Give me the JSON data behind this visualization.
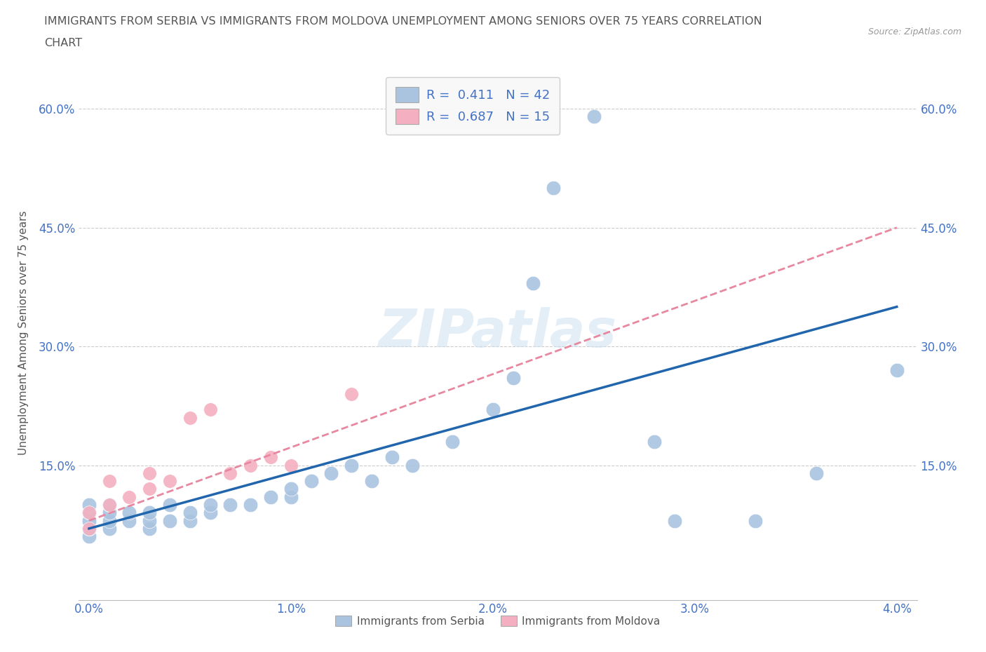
{
  "title_line1": "IMMIGRANTS FROM SERBIA VS IMMIGRANTS FROM MOLDOVA UNEMPLOYMENT AMONG SENIORS OVER 75 YEARS CORRELATION",
  "title_line2": "CHART",
  "source": "Source: ZipAtlas.com",
  "ylabel": "Unemployment Among Seniors over 75 years",
  "watermark": "ZIPatlas",
  "serbia_R": 0.411,
  "serbia_N": 42,
  "moldova_R": 0.687,
  "moldova_N": 15,
  "serbia_color": "#aac4e0",
  "moldova_color": "#f4b0c0",
  "serbia_line_color": "#2166ac",
  "moldova_line_color": "#e888a0",
  "serbia_x": [
    0.0,
    0.0,
    0.0,
    0.0,
    0.0,
    0.001,
    0.001,
    0.001,
    0.001,
    0.002,
    0.002,
    0.003,
    0.003,
    0.003,
    0.004,
    0.004,
    0.005,
    0.005,
    0.006,
    0.006,
    0.007,
    0.008,
    0.009,
    0.01,
    0.01,
    0.011,
    0.012,
    0.013,
    0.014,
    0.015,
    0.016,
    0.018,
    0.02,
    0.021,
    0.022,
    0.023,
    0.025,
    0.028,
    0.029,
    0.033,
    0.036,
    0.04
  ],
  "serbia_y": [
    0.06,
    0.07,
    0.08,
    0.09,
    0.1,
    0.07,
    0.08,
    0.09,
    0.1,
    0.08,
    0.09,
    0.07,
    0.08,
    0.09,
    0.08,
    0.1,
    0.08,
    0.09,
    0.09,
    0.1,
    0.1,
    0.1,
    0.11,
    0.11,
    0.12,
    0.13,
    0.14,
    0.15,
    0.13,
    0.16,
    0.15,
    0.18,
    0.22,
    0.26,
    0.38,
    0.5,
    0.59,
    0.18,
    0.08,
    0.08,
    0.14,
    0.27
  ],
  "moldova_x": [
    0.0,
    0.0,
    0.001,
    0.001,
    0.002,
    0.003,
    0.003,
    0.004,
    0.005,
    0.006,
    0.007,
    0.008,
    0.009,
    0.01,
    0.013
  ],
  "moldova_y": [
    0.07,
    0.09,
    0.1,
    0.13,
    0.11,
    0.12,
    0.14,
    0.13,
    0.21,
    0.22,
    0.14,
    0.15,
    0.16,
    0.15,
    0.24
  ],
  "serbia_trend_x": [
    0.0,
    0.04
  ],
  "serbia_trend_y": [
    0.07,
    0.35
  ],
  "moldova_trend_x": [
    0.0,
    0.04
  ],
  "moldova_trend_y": [
    0.08,
    0.45
  ],
  "xlim": [
    -0.0005,
    0.041
  ],
  "ylim": [
    -0.02,
    0.655
  ],
  "xticks": [
    0.0,
    0.01,
    0.02,
    0.03,
    0.04
  ],
  "xticklabels": [
    "0.0%",
    "1.0%",
    "2.0%",
    "3.0%",
    "4.0%"
  ],
  "yticks": [
    0.15,
    0.3,
    0.45,
    0.6
  ],
  "yticklabels": [
    "15.0%",
    "30.0%",
    "45.0%",
    "60.0%"
  ],
  "background_color": "#ffffff",
  "grid_color": "#cccccc",
  "title_color": "#555555",
  "tick_color": "#4472c4",
  "legend_label1": "R =  0.411   N = 42",
  "legend_label2": "R =  0.687   N = 15",
  "bottom_legend_label1": "Immigrants from Serbia",
  "bottom_legend_label2": "Immigrants from Moldova"
}
